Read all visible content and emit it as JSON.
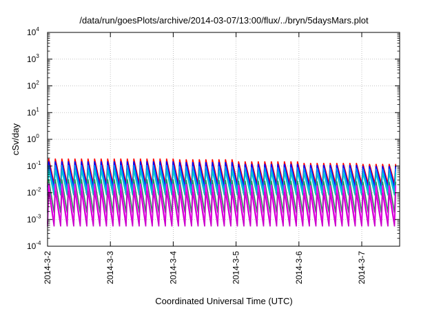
{
  "chart_data": {
    "type": "line",
    "title": "/data/run/goesPlots/archive/2014-03-07/13:00/flux/../bryn/5daysMars.plot",
    "xlabel": "Coordinated Universal Time (UTC)",
    "ylabel": "cSv/day",
    "y_scale": "log",
    "ylim": [
      0.0001,
      10000
    ],
    "xlim": [
      "2014-03-02 00:00",
      "2014-03-07 14:00"
    ],
    "y_ticks": [
      {
        "base": "10",
        "exp": "-4",
        "value": 0.0001
      },
      {
        "base": "10",
        "exp": "-3",
        "value": 0.001
      },
      {
        "base": "10",
        "exp": "-2",
        "value": 0.01
      },
      {
        "base": "10",
        "exp": "-1",
        "value": 0.1
      },
      {
        "base": "10",
        "exp": "0",
        "value": 1
      },
      {
        "base": "10",
        "exp": "1",
        "value": 10
      },
      {
        "base": "10",
        "exp": "2",
        "value": 100
      },
      {
        "base": "10",
        "exp": "3",
        "value": 1000
      },
      {
        "base": "10",
        "exp": "4",
        "value": 10000
      }
    ],
    "x_ticks": [
      "2014-3-2",
      "2014-3-3",
      "2014-3-4",
      "2014-3-5",
      "2014-3-6",
      "2014-3-7"
    ],
    "grid": true,
    "legend": "none",
    "period_hours": 2.5,
    "series": [
      {
        "color": "#ff0000",
        "peak_values": [
          0.19,
          0.19,
          0.18,
          0.15,
          0.13,
          0.12,
          0.12
        ],
        "trough": 0.022
      },
      {
        "color": "#0000ff",
        "peak_values": [
          0.15,
          0.15,
          0.14,
          0.12,
          0.11,
          0.1,
          0.1
        ],
        "trough": 0.016
      },
      {
        "color": "#0090ff",
        "peak_values": [
          0.11,
          0.11,
          0.1,
          0.09,
          0.085,
          0.08,
          0.08
        ],
        "trough": 0.012
      },
      {
        "color": "#00c8c8",
        "peak_values": [
          0.07,
          0.07,
          0.065,
          0.06,
          0.055,
          0.055,
          0.055
        ],
        "trough": 0.008
      },
      {
        "color": "#2e8b57",
        "peak_values": [
          0.032,
          0.032,
          0.03,
          0.028,
          0.027,
          0.026,
          0.026
        ],
        "trough": 0.0018
      },
      {
        "color": "#ff00ff",
        "peak_values": [
          0.022,
          0.022,
          0.021,
          0.02,
          0.019,
          0.019,
          0.019
        ],
        "trough": 0.0007
      },
      {
        "color": "#cc00cc",
        "peak_values": [
          0.012,
          0.012,
          0.011,
          0.011,
          0.01,
          0.01,
          0.01
        ],
        "trough": 0.00055
      }
    ]
  }
}
